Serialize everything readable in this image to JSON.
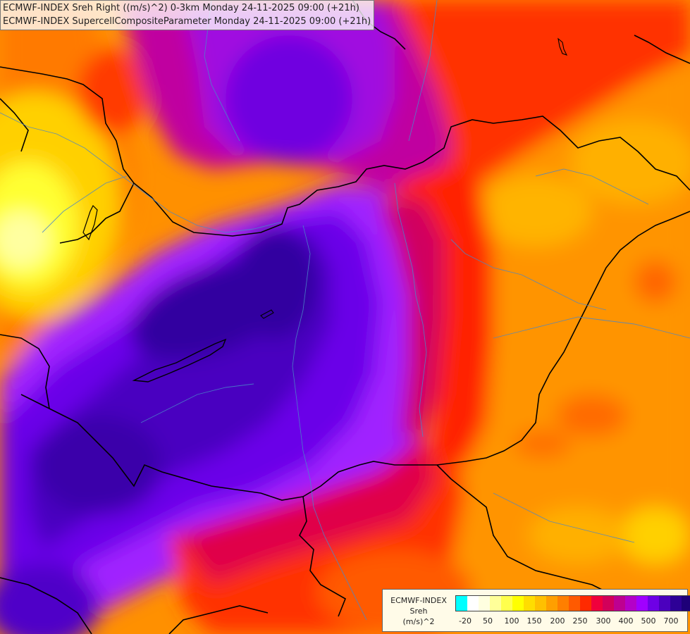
{
  "titles": {
    "line1": "ECMWF-INDEX Sreh Right ((m/s)^2) 0-3km Monday 24-11-2025 09:00 (+21h)",
    "line2": "ECMWF-INDEX SupercellCompositeParameter Monday 24-11-2025 09:00 (+21h)"
  },
  "legend": {
    "title_line1": "ECMWF-INDEX",
    "title_line2": "Sreh",
    "unit": "(m/s)^2",
    "colors": [
      "#00ffff",
      "#ffffff",
      "#ffffe0",
      "#ffff99",
      "#ffff4d",
      "#ffff00",
      "#ffdd00",
      "#ffc000",
      "#ff9f00",
      "#ff7f00",
      "#ff5a00",
      "#ff2a00",
      "#f0003c",
      "#d2005a",
      "#be0090",
      "#b400c8",
      "#a000ff",
      "#6e00e6",
      "#4b00be",
      "#2d0096",
      "#1e0078"
    ],
    "tick_labels": [
      "-20",
      "50",
      "100",
      "150",
      "200",
      "250",
      "300",
      "400",
      "500",
      "700"
    ]
  },
  "map": {
    "region": "Hungary and surrounding area",
    "color_scale_note": "Sreh field shown as filled contours"
  }
}
